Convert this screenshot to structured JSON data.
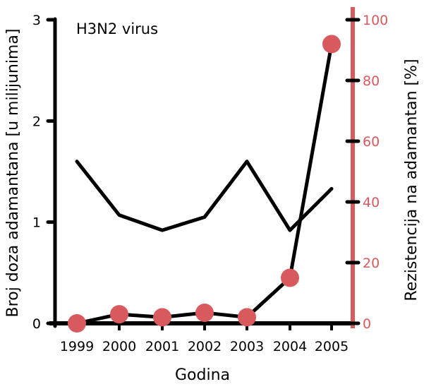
{
  "chart_data": {
    "type": "line",
    "title": "",
    "annotation": "H3N2 virus",
    "xlabel": "Godina",
    "ylabel_left": "Broj doza adamantana [u milijunima]",
    "ylabel_right": "Rezistencija na adamantan [%]",
    "categories": [
      "1999",
      "2000",
      "2001",
      "2002",
      "2003",
      "2004",
      "2005"
    ],
    "left_axis": {
      "ticks": [
        "0",
        "1",
        "2",
        "3"
      ],
      "ylim": [
        0,
        3
      ]
    },
    "right_axis": {
      "ticks": [
        "0",
        "20",
        "40",
        "60",
        "80",
        "100"
      ],
      "ylim": [
        0,
        100
      ],
      "color": "#d95a5e"
    },
    "series": [
      {
        "name": "Broj doza adamantana (milijuni)",
        "axis": "left",
        "color": "#000000",
        "style": "line",
        "values": [
          1.6,
          1.07,
          0.92,
          1.05,
          1.6,
          0.92,
          1.33
        ]
      },
      {
        "name": "Rezistencija na adamantan (%)",
        "axis": "right",
        "color": "#000000",
        "marker_color": "#d95a5e",
        "style": "line+markers",
        "values": [
          0,
          3,
          2,
          3.5,
          2,
          15,
          92
        ]
      }
    ],
    "grid": false,
    "legend": "none"
  }
}
